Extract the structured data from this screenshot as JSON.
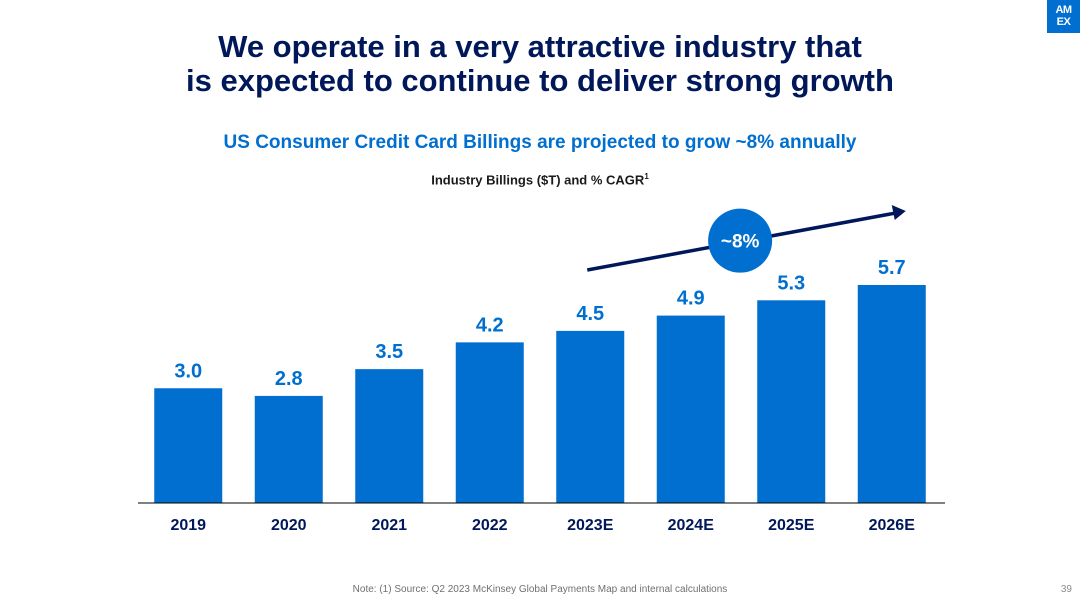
{
  "slide": {
    "title_line1": "We operate in a very attractive industry that",
    "title_line2": "is expected to continue to deliver strong growth",
    "subtitle": "US Consumer Credit Card Billings are projected to grow ~8% annually",
    "caption": "Industry Billings ($T) and % CAGR",
    "caption_sup": "1",
    "note": "Note: (1) Source: Q2 2023 McKinsey Global Payments Map and internal calculations",
    "page_number": "39"
  },
  "logo": {
    "line1": "AM",
    "line2": "EX"
  },
  "colors": {
    "navy": "#00175a",
    "blue": "#006fcf",
    "white": "#ffffff"
  },
  "chart_data": {
    "type": "bar",
    "title": "Industry Billings ($T) and % CAGR",
    "categories": [
      "2019",
      "2020",
      "2021",
      "2022",
      "2023E",
      "2024E",
      "2025E",
      "2026E"
    ],
    "values": [
      3.0,
      2.8,
      3.5,
      4.2,
      4.5,
      4.9,
      5.3,
      5.7
    ],
    "value_labels": [
      "3.0",
      "2.8",
      "3.5",
      "4.2",
      "4.5",
      "4.9",
      "5.3",
      "5.7"
    ],
    "xlabel": "",
    "ylabel": "",
    "ylim": [
      0,
      5.7
    ],
    "grid": false,
    "annotation": {
      "text": "~8%",
      "from_category": "2023E",
      "to_category": "2026E"
    }
  }
}
